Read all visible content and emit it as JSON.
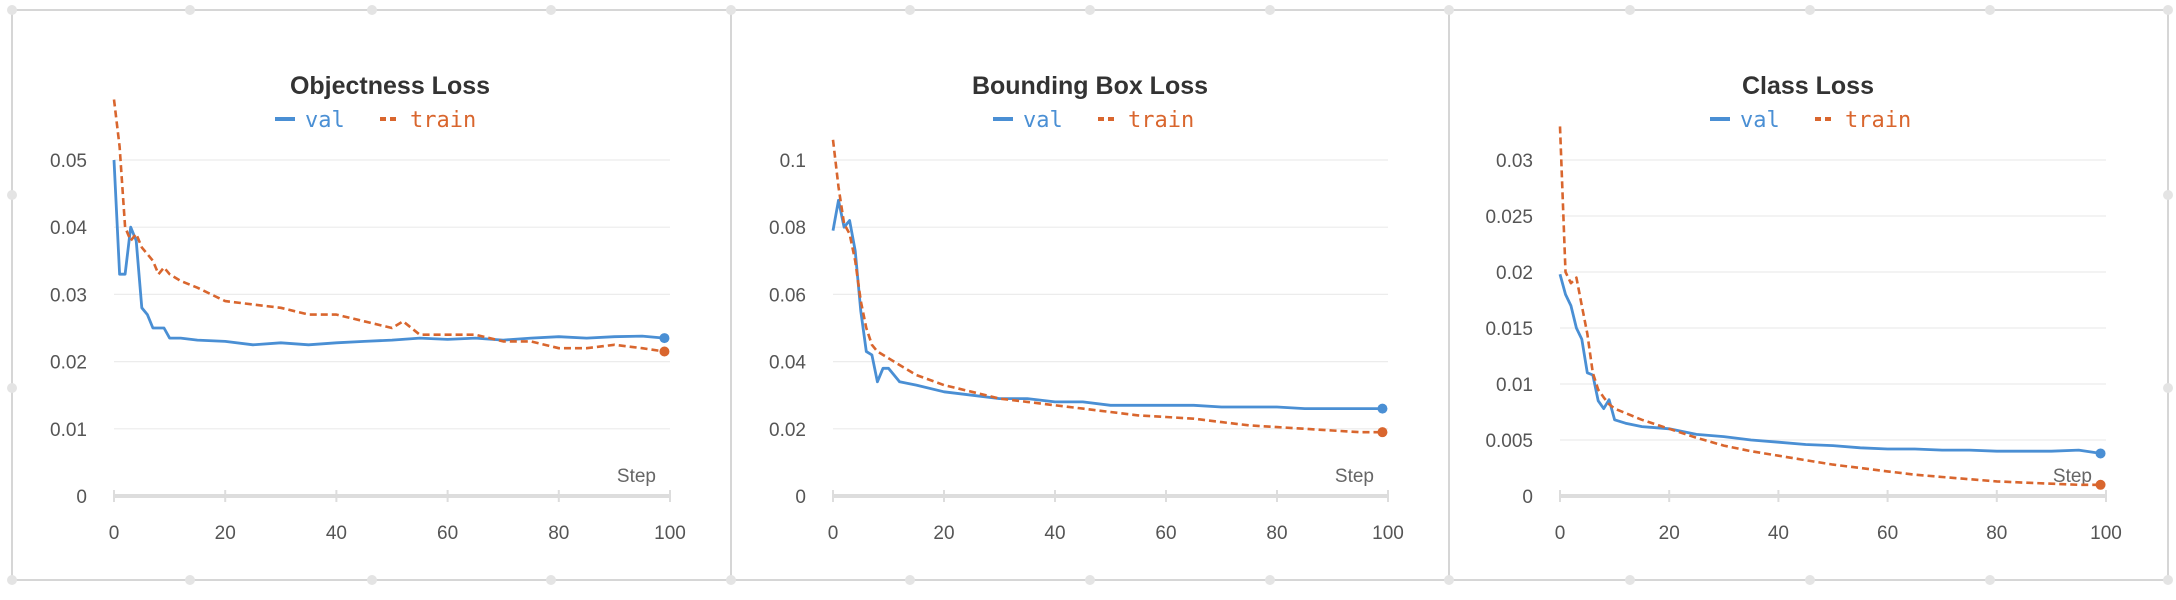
{
  "colors": {
    "val": "#4a8fd4",
    "train": "#d9662e",
    "grid": "#ececec",
    "axis": "#dddddd",
    "border": "#d6d6d6"
  },
  "chart_data": [
    {
      "type": "line",
      "title": "Objectness Loss",
      "xlabel": "Step",
      "ylabel": "",
      "xlim": [
        0,
        100
      ],
      "ylim": [
        0,
        0.05
      ],
      "xticks": [
        0,
        20,
        40,
        60,
        80,
        100
      ],
      "yticks": [
        0,
        0.01,
        0.02,
        0.03,
        0.04,
        0.05
      ],
      "ytick_labels": [
        "0",
        "0.01",
        "0.02",
        "0.03",
        "0.04",
        "0.05"
      ],
      "series": [
        {
          "name": "val",
          "style": "solid",
          "x": [
            0,
            1,
            2,
            3,
            4,
            5,
            6,
            7,
            8,
            9,
            10,
            12,
            15,
            20,
            25,
            30,
            35,
            40,
            45,
            50,
            55,
            60,
            65,
            70,
            75,
            80,
            85,
            90,
            95,
            99
          ],
          "y": [
            0.05,
            0.033,
            0.033,
            0.04,
            0.038,
            0.028,
            0.027,
            0.025,
            0.025,
            0.025,
            0.0235,
            0.0235,
            0.0232,
            0.023,
            0.0225,
            0.0228,
            0.0225,
            0.0228,
            0.023,
            0.0232,
            0.0235,
            0.0233,
            0.0235,
            0.0232,
            0.0235,
            0.0237,
            0.0235,
            0.0237,
            0.0238,
            0.0235
          ]
        },
        {
          "name": "train",
          "style": "dashed",
          "x": [
            0,
            1,
            2,
            3,
            4,
            5,
            6,
            7,
            8,
            9,
            10,
            12,
            15,
            20,
            25,
            30,
            35,
            40,
            45,
            50,
            52,
            55,
            60,
            65,
            70,
            75,
            80,
            85,
            90,
            95,
            99
          ],
          "y": [
            0.059,
            0.052,
            0.04,
            0.038,
            0.039,
            0.037,
            0.036,
            0.035,
            0.033,
            0.034,
            0.033,
            0.032,
            0.031,
            0.029,
            0.0285,
            0.028,
            0.027,
            0.027,
            0.026,
            0.025,
            0.026,
            0.024,
            0.024,
            0.024,
            0.023,
            0.023,
            0.022,
            0.022,
            0.0225,
            0.022,
            0.0215
          ]
        }
      ]
    },
    {
      "type": "line",
      "title": "Bounding Box Loss",
      "xlabel": "Step",
      "ylabel": "",
      "xlim": [
        0,
        100
      ],
      "ylim": [
        0,
        0.1
      ],
      "xticks": [
        0,
        20,
        40,
        60,
        80,
        100
      ],
      "yticks": [
        0,
        0.02,
        0.04,
        0.06,
        0.08,
        0.1
      ],
      "ytick_labels": [
        "0",
        "0.02",
        "0.04",
        "0.06",
        "0.08",
        "0.1"
      ],
      "series": [
        {
          "name": "val",
          "style": "solid",
          "x": [
            0,
            1,
            2,
            3,
            4,
            5,
            6,
            7,
            8,
            9,
            10,
            12,
            15,
            20,
            25,
            30,
            35,
            40,
            45,
            50,
            55,
            60,
            65,
            70,
            75,
            80,
            85,
            90,
            95,
            99
          ],
          "y": [
            0.079,
            0.088,
            0.08,
            0.082,
            0.073,
            0.055,
            0.043,
            0.042,
            0.034,
            0.038,
            0.038,
            0.034,
            0.033,
            0.031,
            0.03,
            0.029,
            0.029,
            0.028,
            0.028,
            0.027,
            0.027,
            0.027,
            0.027,
            0.0265,
            0.0265,
            0.0265,
            0.026,
            0.026,
            0.026,
            0.026
          ]
        },
        {
          "name": "train",
          "style": "dashed",
          "x": [
            0,
            1,
            2,
            3,
            4,
            5,
            6,
            7,
            8,
            9,
            10,
            12,
            15,
            20,
            25,
            30,
            35,
            40,
            45,
            50,
            55,
            60,
            65,
            70,
            75,
            80,
            85,
            90,
            95,
            99
          ],
          "y": [
            0.106,
            0.092,
            0.081,
            0.078,
            0.07,
            0.058,
            0.05,
            0.045,
            0.043,
            0.042,
            0.041,
            0.039,
            0.036,
            0.033,
            0.031,
            0.029,
            0.028,
            0.027,
            0.026,
            0.025,
            0.024,
            0.0235,
            0.023,
            0.022,
            0.021,
            0.0205,
            0.02,
            0.0195,
            0.019,
            0.019
          ]
        }
      ]
    },
    {
      "type": "line",
      "title": "Class Loss",
      "xlabel": "Step",
      "ylabel": "",
      "xlim": [
        0,
        100
      ],
      "ylim": [
        0,
        0.03
      ],
      "xticks": [
        0,
        20,
        40,
        60,
        80,
        100
      ],
      "yticks": [
        0,
        0.005,
        0.01,
        0.015,
        0.02,
        0.025,
        0.03
      ],
      "ytick_labels": [
        "0",
        "0.005",
        "0.01",
        "0.015",
        "0.02",
        "0.025",
        "0.03"
      ],
      "series": [
        {
          "name": "val",
          "style": "solid",
          "x": [
            0,
            1,
            2,
            3,
            4,
            5,
            6,
            7,
            8,
            9,
            10,
            12,
            15,
            20,
            25,
            30,
            35,
            40,
            45,
            50,
            55,
            60,
            65,
            70,
            75,
            80,
            85,
            90,
            95,
            99
          ],
          "y": [
            0.0198,
            0.018,
            0.017,
            0.015,
            0.014,
            0.011,
            0.0108,
            0.0085,
            0.0078,
            0.0086,
            0.0068,
            0.0065,
            0.0062,
            0.006,
            0.0055,
            0.0053,
            0.005,
            0.0048,
            0.0046,
            0.0045,
            0.0043,
            0.0042,
            0.0042,
            0.0041,
            0.0041,
            0.004,
            0.004,
            0.004,
            0.0041,
            0.0038
          ]
        },
        {
          "name": "train",
          "style": "dashed",
          "x": [
            0,
            1,
            2,
            3,
            4,
            5,
            6,
            7,
            8,
            9,
            10,
            12,
            15,
            20,
            25,
            30,
            35,
            40,
            45,
            50,
            55,
            60,
            65,
            70,
            75,
            80,
            85,
            90,
            95,
            99
          ],
          "y": [
            0.033,
            0.02,
            0.019,
            0.0195,
            0.017,
            0.0145,
            0.011,
            0.0095,
            0.0088,
            0.0082,
            0.0078,
            0.0074,
            0.0068,
            0.006,
            0.0052,
            0.0045,
            0.004,
            0.0036,
            0.0032,
            0.0028,
            0.0025,
            0.0022,
            0.0019,
            0.0017,
            0.0015,
            0.0013,
            0.0012,
            0.0011,
            0.001,
            0.001
          ]
        }
      ]
    }
  ]
}
